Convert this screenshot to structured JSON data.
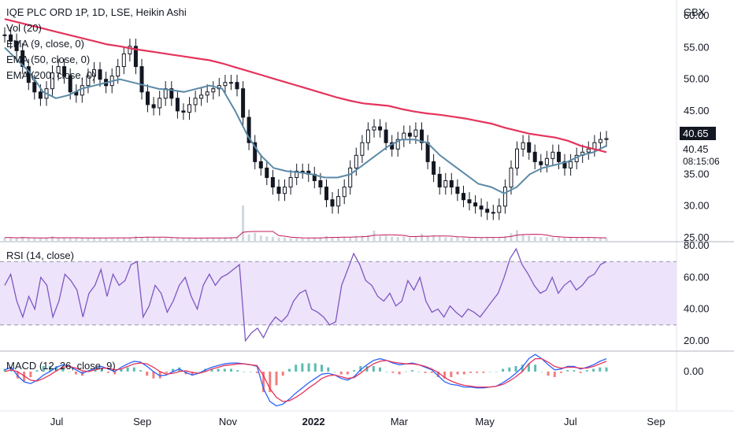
{
  "chart_data": [
    {
      "type": "candlestick",
      "title": "IQE PLC ORD 1P, 1D, LSE, Heikin Ashi",
      "currency": "GBX",
      "indicators": [
        "Vol (20)",
        "EMA (9, close, 0)",
        "EMA (50, close, 0)",
        "EMA (200, close, 0)"
      ],
      "price_ticks": [
        "60.00",
        "55.00",
        "50.00",
        "45.00",
        "35.00",
        "30.00",
        "25.00"
      ],
      "ylim": [
        24.5,
        62.5
      ],
      "last_price": "40.65",
      "prev_close": "40.45",
      "countdown": "08:15:06",
      "price_series": [
        57,
        56,
        54.5,
        52,
        49.5,
        48,
        47,
        48.5,
        51,
        52,
        50.5,
        48,
        47.5,
        49,
        50.5,
        51.5,
        50,
        49,
        50.5,
        52,
        54,
        55.2,
        52,
        48,
        46,
        45.5,
        47,
        48.5,
        47,
        45,
        44.8,
        46,
        47,
        47.5,
        48,
        48.5,
        49,
        49.5,
        49.5,
        48.5,
        44,
        40,
        37,
        36,
        34.5,
        33,
        32,
        33,
        34.5,
        35.5,
        35.5,
        35,
        34,
        33,
        31,
        30,
        31.5,
        33,
        36,
        38,
        40,
        42,
        42.5,
        42,
        40,
        39,
        40.5,
        41.5,
        41,
        42,
        40,
        37,
        35,
        33,
        34,
        33,
        32,
        31,
        30.5,
        30,
        29.5,
        29,
        29,
        30,
        33,
        36,
        39,
        40,
        38.5,
        37,
        36.5,
        37.5,
        38.5,
        37,
        36,
        37,
        38,
        38.5,
        39,
        40,
        40.5,
        40.65
      ],
      "ema200": [
        59.5,
        59,
        58.5,
        58,
        57.5,
        57,
        56.5,
        56,
        55.5,
        55.2,
        54.8,
        54.5,
        54.2,
        53.9,
        53.6,
        53.3,
        53,
        52.5,
        51.9,
        51.3,
        50.7,
        50.1,
        49.5,
        48.9,
        48.3,
        47.7,
        47.1,
        46.6,
        46.2,
        46,
        45.8,
        45.3,
        44.9,
        44.6,
        44.4,
        44.1,
        43.8,
        43.4,
        43,
        42.4,
        41.9,
        41.4,
        41.1,
        40.8,
        40.3,
        39.5,
        39,
        38.5
      ],
      "ema50": [
        55,
        53,
        51,
        48,
        47,
        47.5,
        48.5,
        49,
        49.5,
        50,
        49.5,
        49,
        48.5,
        48.3,
        48,
        48.5,
        49,
        48.5,
        45,
        41,
        38,
        36,
        35.5,
        35.3,
        35,
        34.5,
        34.5,
        35,
        36.5,
        38,
        39.5,
        40.5,
        40.5,
        40,
        38,
        36.5,
        35,
        33.5,
        33,
        32,
        33,
        35,
        36,
        36.5,
        37,
        38,
        38.5,
        39.5
      ],
      "volume": [
        0.6,
        0.6,
        0.5,
        0.7,
        0.5,
        0.5,
        0.5,
        0.6,
        0.8,
        0.5,
        0.6,
        0.5,
        0.5,
        0.5,
        0.6,
        0.6,
        0.6,
        0.5,
        0.6,
        0.5,
        0.6,
        0.6,
        0.9,
        0.7,
        0.8,
        0.6,
        0.6,
        0.5,
        0.5,
        0.5,
        0.5,
        0.6,
        0.5,
        0.5,
        0.6,
        0.5,
        0.5,
        0.6,
        0.7,
        0.7,
        6.5,
        1.2,
        1.5,
        1,
        0.8,
        0.7,
        0.6,
        0.6,
        0.5,
        0.5,
        0.5,
        0.5,
        0.6,
        0.6,
        0.9,
        0.7,
        0.6,
        0.7,
        0.6,
        0.9,
        1,
        1.1,
        1.9,
        0.9,
        1,
        0.8,
        0.7,
        0.8,
        0.6,
        0.9,
        1.3,
        0.8,
        1,
        0.8,
        0.7,
        0.6,
        0.7,
        0.6,
        0.6,
        0.6,
        0.6,
        0.7,
        0.7,
        0.7,
        0.9,
        1.4,
        2,
        1.2,
        1,
        0.8,
        0.7,
        0.7,
        0.6,
        0.7,
        0.6,
        0.6,
        0.6,
        0.7,
        0.6,
        0.5,
        0.5,
        0.5
      ]
    },
    {
      "type": "line",
      "title": "RSI (14, close)",
      "ticks": [
        "80.00",
        "60.00",
        "40.00",
        "20.00"
      ],
      "ylim": [
        14,
        82
      ],
      "upper_band": 70,
      "lower_band": 30,
      "values": [
        55,
        62,
        45,
        35,
        48,
        40,
        60,
        55,
        35,
        45,
        62,
        58,
        52,
        35,
        50,
        55,
        65,
        48,
        62,
        55,
        58,
        68,
        70,
        35,
        42,
        55,
        50,
        38,
        45,
        55,
        60,
        48,
        40,
        55,
        62,
        55,
        60,
        62,
        65,
        68,
        20,
        25,
        28,
        22,
        30,
        35,
        32,
        36,
        45,
        50,
        52,
        40,
        38,
        35,
        30,
        32,
        55,
        65,
        75,
        68,
        58,
        55,
        48,
        45,
        50,
        42,
        45,
        58,
        52,
        60,
        45,
        38,
        40,
        35,
        42,
        38,
        35,
        40,
        38,
        35,
        40,
        45,
        50,
        60,
        72,
        78,
        68,
        62,
        55,
        50,
        52,
        60,
        50,
        55,
        58,
        52,
        55,
        60,
        62,
        68,
        70
      ],
      "series": [
        {
          "name": "RSI",
          "color": "#7e57c2"
        }
      ]
    },
    {
      "type": "macd",
      "title": "MACD (12, 26, close, 9)",
      "ticks": [
        "0.00"
      ],
      "ylim": [
        -4.5,
        2.2
      ],
      "macd": [
        0.2,
        0.5,
        -0.5,
        -1.2,
        -1.4,
        -1,
        -0.4,
        0,
        0.5,
        0.8,
        0.6,
        0.2,
        -0.2,
        0.1,
        0.4,
        0.6,
        0.3,
        0,
        0.5,
        0.9,
        1.2,
        1.1,
        0.6,
        0,
        -0.5,
        -0.4,
        0,
        0.3,
        -0.1,
        -0.4,
        -0.2,
        0.2,
        0.5,
        0.7,
        0.9,
        1,
        1,
        0.9,
        0.8,
        0.6,
        -2,
        -3.5,
        -4,
        -3.8,
        -3.2,
        -2.5,
        -1.9,
        -1.3,
        -0.8,
        -0.3,
        -0.2,
        -0.4,
        -0.8,
        -1,
        -0.6,
        0.2,
        0.8,
        1.3,
        1.5,
        1.3,
        1,
        0.8,
        0.9,
        1,
        0.8,
        0.5,
        0.2,
        -0.5,
        -1.2,
        -1.5,
        -1.6,
        -1.8,
        -1.8,
        -1.9,
        -1.9,
        -1.8,
        -1.7,
        -1.3,
        -0.8,
        -0.2,
        0.5,
        1.5,
        2,
        1.5,
        0.8,
        0.2,
        0.3,
        0.6,
        0.6,
        0.3,
        0.5,
        0.8,
        1.2,
        1.5
      ],
      "signal": [
        0,
        0.2,
        0,
        -0.5,
        -1,
        -1.1,
        -0.8,
        -0.4,
        0.1,
        0.5,
        0.6,
        0.4,
        0.1,
        0,
        0.2,
        0.4,
        0.4,
        0.2,
        0.3,
        0.6,
        0.9,
        1,
        0.9,
        0.5,
        0,
        -0.3,
        -0.2,
        0,
        0.1,
        -0.1,
        -0.2,
        0,
        0.3,
        0.5,
        0.7,
        0.8,
        0.9,
        0.9,
        0.8,
        0.7,
        -0.5,
        -2,
        -3,
        -3.5,
        -3.4,
        -3,
        -2.5,
        -1.9,
        -1.4,
        -0.8,
        -0.5,
        -0.4,
        -0.6,
        -0.8,
        -0.7,
        -0.2,
        0.4,
        0.9,
        1.2,
        1.3,
        1.1,
        1,
        0.9,
        0.9,
        0.8,
        0.6,
        0.3,
        -0.1,
        -0.7,
        -1.1,
        -1.4,
        -1.6,
        -1.7,
        -1.8,
        -1.8,
        -1.8,
        -1.7,
        -1.5,
        -1.1,
        -0.6,
        0,
        0.9,
        1.5,
        1.5,
        1.1,
        0.6,
        0.4,
        0.5,
        0.5,
        0.4,
        0.4,
        0.6,
        0.9,
        1.2
      ],
      "series": [
        {
          "name": "MACD",
          "color": "#2962ff"
        },
        {
          "name": "Signal",
          "color": "#ff6d00"
        }
      ]
    }
  ],
  "x_axis": {
    "ticks": [
      "Jul",
      "Sep",
      "Nov",
      "2022",
      "Mar",
      "May",
      "Jul",
      "Sep"
    ],
    "bold_tick": "2022"
  },
  "colors": {
    "up": "#131722",
    "ema9": "#131722",
    "ema50": "#5b8aa8",
    "ema200": "#e5335b",
    "volume": "#cfd8dc",
    "rsi_band": "#ede3fb",
    "rsi_line": "#7e57c2",
    "macd_line": "#2962ff",
    "signal_line": "#e5335b",
    "hist_pos": "#26a69a",
    "hist_neg": "#ef5350",
    "price_tag_bg": "#131722"
  },
  "legend": {
    "title": "IQE PLC ORD 1P, 1D, LSE, Heikin Ashi",
    "vol": "Vol (20)",
    "ema9": "EMA (9, close, 0)",
    "ema50": "EMA (50, close, 0)",
    "ema200": "EMA (200, close, 0)",
    "rsi": "RSI (14, close)",
    "macd": "MACD (12, 26, close, 9)"
  }
}
